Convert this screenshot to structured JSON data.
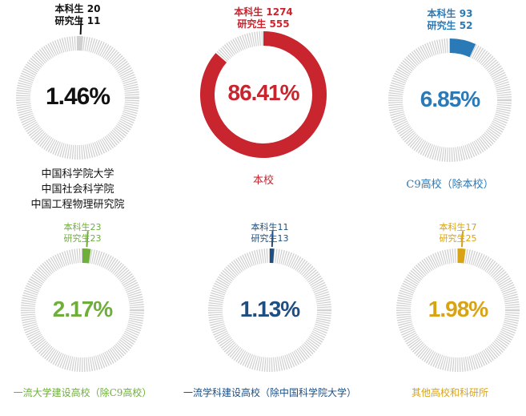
{
  "chart_data": [
    {
      "type": "pie",
      "value": 1.46,
      "value_label": "1.46%",
      "counts": [
        "本科生 20",
        "研究生  11"
      ],
      "label": [
        "中国科学院大学",
        "中国社会科学院",
        "中国工程物理研究院"
      ],
      "color": "#111111"
    },
    {
      "type": "pie",
      "value": 86.41,
      "value_label": "86.41%",
      "counts": [
        "本科生 1274",
        "研究生 555"
      ],
      "label": [
        "本校"
      ],
      "color": "#c8252f"
    },
    {
      "type": "pie",
      "value": 6.85,
      "value_label": "6.85%",
      "counts": [
        "本科生 93",
        "研究生 52"
      ],
      "label": [
        "C9高校（除本校）"
      ],
      "color": "#2a7ab8"
    },
    {
      "type": "pie",
      "value": 2.17,
      "value_label": "2.17%",
      "counts": [
        "本科生23",
        "研究生23"
      ],
      "label": [
        "一流大学建设高校（除C9高校）"
      ],
      "color": "#6fae3b"
    },
    {
      "type": "pie",
      "value": 1.13,
      "value_label": "1.13%",
      "counts": [
        "本科生11",
        "研究生13"
      ],
      "label": [
        "一流学科建设高校（除中国科学院大学）"
      ],
      "color": "#1f4f82"
    },
    {
      "type": "pie",
      "value": 1.98,
      "value_label": "1.98%",
      "counts": [
        "本科生17",
        "研究生25"
      ],
      "label": [
        "其他高校和科研所"
      ],
      "color": "#d8a315"
    }
  ],
  "ring_track_color": "#cfcfcf"
}
